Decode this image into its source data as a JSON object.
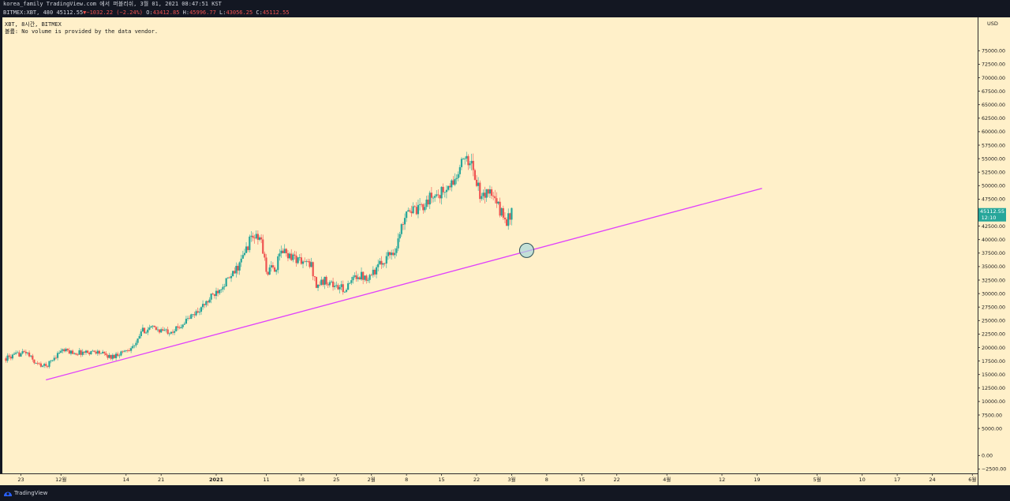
{
  "header": {
    "publish_line": "korea_family TradingView.com 에서 퍼블리쉬, 3월 01, 2021 08:47:51 KST",
    "symbol": "BITMEX:XBT, 480",
    "last": "45112.55",
    "change": "−1032.22 (−2.24%)",
    "open_label": "O:",
    "open": "43412.85",
    "high_label": "H:",
    "high": "45996.77",
    "low_label": "L:",
    "low": "43056.25",
    "close_label": "C:",
    "close": "45112.55"
  },
  "overlay": {
    "line1": "XBT, 8시간, BITMEX",
    "line2": "볼륨: No volume is provided by the data vendor."
  },
  "footer": {
    "brand": "TradingView"
  },
  "colors": {
    "background": "#fff0c9",
    "up": "#26a69a",
    "down": "#ef5350",
    "trendline": "#e040fb",
    "price_badge": "#26a69a"
  },
  "chart_data": {
    "type": "candlestick",
    "symbol": "BITMEX:XBT",
    "interval": "8시간",
    "currency_label": "USD",
    "y_range": [
      -5000,
      77500
    ],
    "y_ticks": [
      75000,
      72500,
      70000,
      67500,
      65000,
      62500,
      60000,
      57500,
      55000,
      52500,
      50000,
      47500,
      42500,
      40000,
      37500,
      35000,
      32500,
      30000,
      27500,
      25000,
      22500,
      20000,
      17500,
      15000,
      12500,
      10000,
      7500,
      5000,
      0,
      -2500
    ],
    "y_tick_labels": [
      "75000.00",
      "72500.00",
      "70000.00",
      "67500.00",
      "65000.00",
      "62500.00",
      "60000.00",
      "57500.00",
      "55000.00",
      "52500.00",
      "50000.00",
      "47500.00",
      "42500.00",
      "40000.00",
      "37500.00",
      "35000.00",
      "32500.00",
      "30000.00",
      "27500.00",
      "25000.00",
      "22500.00",
      "20000.00",
      "17500.00",
      "15000.00",
      "12500.00",
      "10000.00",
      "7500.00",
      "5000.00",
      "0.00",
      "−2500.00"
    ],
    "x_ticks": [
      {
        "date": "2020-11-23",
        "label": "23"
      },
      {
        "date": "2020-12-01",
        "label": "12월"
      },
      {
        "date": "2020-12-14",
        "label": "14"
      },
      {
        "date": "2020-12-21",
        "label": "21"
      },
      {
        "date": "2021-01-01",
        "label": "2021"
      },
      {
        "date": "2021-01-11",
        "label": "11"
      },
      {
        "date": "2021-01-18",
        "label": "18"
      },
      {
        "date": "2021-01-25",
        "label": "25"
      },
      {
        "date": "2021-02-01",
        "label": "2월"
      },
      {
        "date": "2021-02-08",
        "label": "8"
      },
      {
        "date": "2021-02-15",
        "label": "15"
      },
      {
        "date": "2021-02-22",
        "label": "22"
      },
      {
        "date": "2021-03-01",
        "label": "3월"
      },
      {
        "date": "2021-03-08",
        "label": "8"
      },
      {
        "date": "2021-03-15",
        "label": "15"
      },
      {
        "date": "2021-03-22",
        "label": "22"
      },
      {
        "date": "2021-04-01",
        "label": "4월"
      },
      {
        "date": "2021-04-12",
        "label": "12"
      },
      {
        "date": "2021-04-19",
        "label": "19"
      },
      {
        "date": "2021-05-01",
        "label": "5월"
      },
      {
        "date": "2021-05-10",
        "label": "10"
      },
      {
        "date": "2021-05-17",
        "label": "17"
      },
      {
        "date": "2021-05-24",
        "label": "24"
      },
      {
        "date": "2021-06-01",
        "label": "6월"
      }
    ],
    "last_price": {
      "value": 45112.55,
      "label": "45112.55",
      "countdown": "12:10"
    },
    "trendline": {
      "start": {
        "date": "2020-11-28",
        "price": 14000
      },
      "end": {
        "date": "2021-04-20",
        "price": 49500
      }
    },
    "marker_circle": {
      "date": "2021-03-04",
      "price": 38000
    },
    "series_path": [
      [
        "2020-11-20",
        18000
      ],
      [
        "2020-11-24",
        19200
      ],
      [
        "2020-11-26",
        17000
      ],
      [
        "2020-11-28",
        16500
      ],
      [
        "2020-12-01",
        19500
      ],
      [
        "2020-12-04",
        19000
      ],
      [
        "2020-12-08",
        19300
      ],
      [
        "2020-12-11",
        18200
      ],
      [
        "2020-12-13",
        19100
      ],
      [
        "2020-12-16",
        20500
      ],
      [
        "2020-12-17",
        23000
      ],
      [
        "2020-12-19",
        23600
      ],
      [
        "2020-12-22",
        23000
      ],
      [
        "2020-12-24",
        23400
      ],
      [
        "2020-12-26",
        25000
      ],
      [
        "2020-12-28",
        26500
      ],
      [
        "2020-12-30",
        28200
      ],
      [
        "2021-01-02",
        31500
      ],
      [
        "2021-01-04",
        33000
      ],
      [
        "2021-01-06",
        36000
      ],
      [
        "2021-01-08",
        40500
      ],
      [
        "2021-01-10",
        40000
      ],
      [
        "2021-01-11",
        34000
      ],
      [
        "2021-01-13",
        35000
      ],
      [
        "2021-01-14",
        38000
      ],
      [
        "2021-01-16",
        37000
      ],
      [
        "2021-01-18",
        36000
      ],
      [
        "2021-01-20",
        35200
      ],
      [
        "2021-01-21",
        31500
      ],
      [
        "2021-01-23",
        32500
      ],
      [
        "2021-01-25",
        31200
      ],
      [
        "2021-01-27",
        30800
      ],
      [
        "2021-01-29",
        33500
      ],
      [
        "2021-01-31",
        33100
      ],
      [
        "2021-02-02",
        34500
      ],
      [
        "2021-02-04",
        36800
      ],
      [
        "2021-02-06",
        38500
      ],
      [
        "2021-02-08",
        46000
      ],
      [
        "2021-02-10",
        45000
      ],
      [
        "2021-02-12",
        47200
      ],
      [
        "2021-02-14",
        48400
      ],
      [
        "2021-02-16",
        49000
      ],
      [
        "2021-02-18",
        51500
      ],
      [
        "2021-02-20",
        56000
      ],
      [
        "2021-02-22",
        51000
      ],
      [
        "2021-02-23",
        47000
      ],
      [
        "2021-02-24",
        49500
      ],
      [
        "2021-02-25",
        48000
      ],
      [
        "2021-02-26",
        46500
      ],
      [
        "2021-02-28",
        43500
      ],
      [
        "2021-03-01",
        45112.55
      ]
    ]
  }
}
